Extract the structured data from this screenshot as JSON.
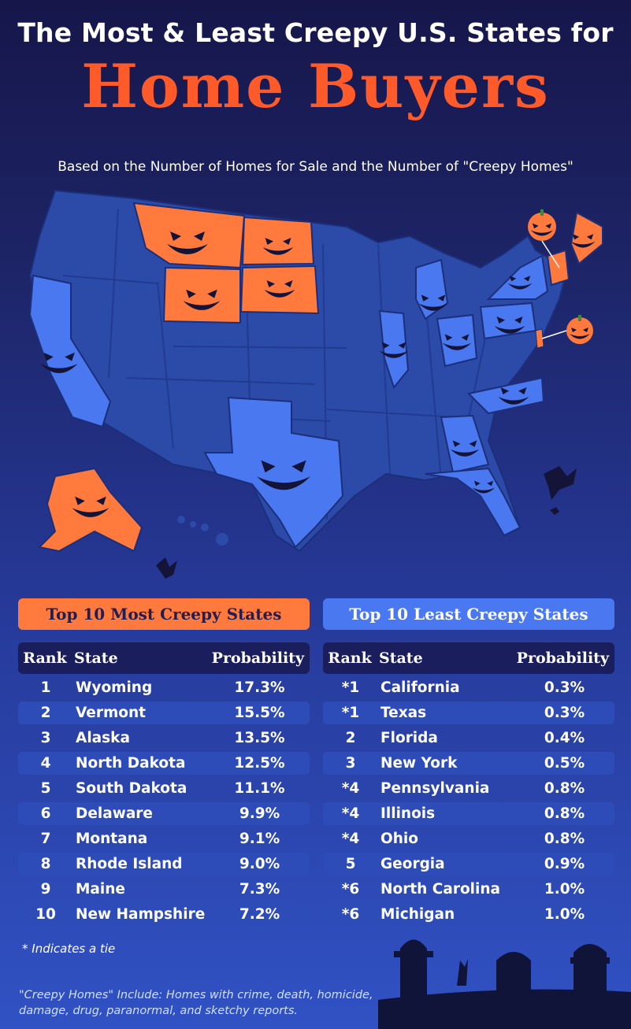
{
  "header": {
    "title_line1": "The Most & Least Creepy U.S. States for",
    "title_line2": "Home Buyers",
    "subtitle": "Based on the Number of Homes for Sale and the Number of \"Creepy Homes\""
  },
  "colors": {
    "most_creepy": "#ff7a3c",
    "least_creepy": "#4a78f0",
    "neutral_state": "#2c4aa8",
    "title_accent": "#ff5a2a",
    "background_top": "#16164a",
    "background_bottom": "#3152c4"
  },
  "map": {
    "legend_icons": [
      "pumpkin-icon",
      "bat-icon"
    ],
    "highlighted_most": [
      "Wyoming",
      "Vermont",
      "Alaska",
      "North Dakota",
      "South Dakota",
      "Delaware",
      "Montana",
      "Rhode Island",
      "Maine",
      "New Hampshire"
    ],
    "highlighted_least": [
      "California",
      "Texas",
      "Florida",
      "New York",
      "Pennsylvania",
      "Illinois",
      "Ohio",
      "Georgia",
      "North Carolina",
      "Michigan"
    ]
  },
  "most": {
    "heading": "Top 10 Most Creepy States",
    "columns": [
      "Rank",
      "State",
      "Probability"
    ],
    "rows": [
      {
        "rank": "1",
        "state": "Wyoming",
        "prob": "17.3%"
      },
      {
        "rank": "2",
        "state": "Vermont",
        "prob": "15.5%"
      },
      {
        "rank": "3",
        "state": "Alaska",
        "prob": "13.5%"
      },
      {
        "rank": "4",
        "state": "North Dakota",
        "prob": "12.5%"
      },
      {
        "rank": "5",
        "state": "South Dakota",
        "prob": "11.1%"
      },
      {
        "rank": "6",
        "state": "Delaware",
        "prob": "9.9%"
      },
      {
        "rank": "7",
        "state": "Montana",
        "prob": "9.1%"
      },
      {
        "rank": "8",
        "state": "Rhode Island",
        "prob": "9.0%"
      },
      {
        "rank": "9",
        "state": "Maine",
        "prob": "7.3%"
      },
      {
        "rank": "10",
        "state": "New Hampshire",
        "prob": "7.2%"
      }
    ]
  },
  "least": {
    "heading": "Top 10 Least Creepy States",
    "columns": [
      "Rank",
      "State",
      "Probability"
    ],
    "rows": [
      {
        "rank": "*1",
        "state": "California",
        "prob": "0.3%"
      },
      {
        "rank": "*1",
        "state": "Texas",
        "prob": "0.3%"
      },
      {
        "rank": "2",
        "state": "Florida",
        "prob": "0.4%"
      },
      {
        "rank": "3",
        "state": "New York",
        "prob": "0.5%"
      },
      {
        "rank": "*4",
        "state": "Pennsylvania",
        "prob": "0.8%"
      },
      {
        "rank": "*4",
        "state": "Illinois",
        "prob": "0.8%"
      },
      {
        "rank": "*4",
        "state": "Ohio",
        "prob": "0.8%"
      },
      {
        "rank": "5",
        "state": "Georgia",
        "prob": "0.9%"
      },
      {
        "rank": "*6",
        "state": "North Carolina",
        "prob": "1.0%"
      },
      {
        "rank": "*6",
        "state": "Michigan",
        "prob": "1.0%"
      }
    ]
  },
  "footnote": "*  Indicates a tie",
  "definition": "\"Creepy Homes\" Include: Homes with crime, death, homicide, damage, drug, paranormal, and sketchy reports."
}
